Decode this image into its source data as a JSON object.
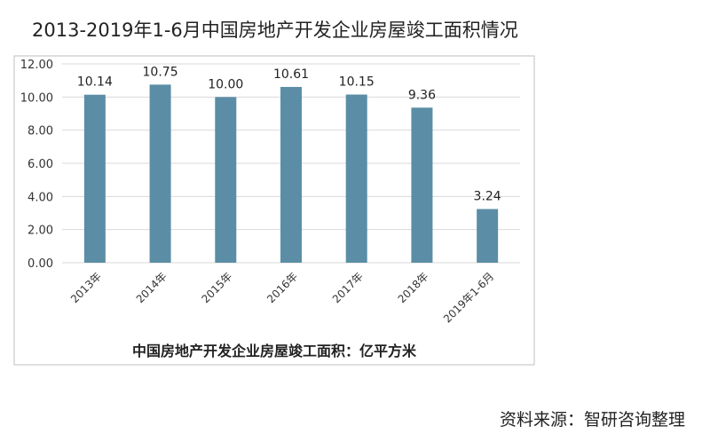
{
  "title": "2013-2019年1-6月中国房地产开发企业房屋竣工面积情况",
  "source": "资料来源：智研咨询整理",
  "chart_data": {
    "type": "bar",
    "categories": [
      "2013年",
      "2014年",
      "2015年",
      "2016年",
      "2017年",
      "2018年",
      "2019年1-6月"
    ],
    "values": [
      10.14,
      10.75,
      10.0,
      10.61,
      10.15,
      9.36,
      3.24
    ],
    "value_labels": [
      "10.14",
      "10.75",
      "10.00",
      "10.61",
      "10.15",
      "9.36",
      "3.24"
    ],
    "xlabel": "中国房地产开发企业房屋竣工面积：亿平方米",
    "ylabel": "",
    "ylim": [
      0,
      12
    ],
    "yticks": [
      "0.00",
      "2.00",
      "4.00",
      "6.00",
      "8.00",
      "10.00",
      "12.00"
    ],
    "grid": true,
    "colors": {
      "bar": "#5b8ea6",
      "grid": "#d9d9d9",
      "frame": "#bfbfbf"
    }
  }
}
